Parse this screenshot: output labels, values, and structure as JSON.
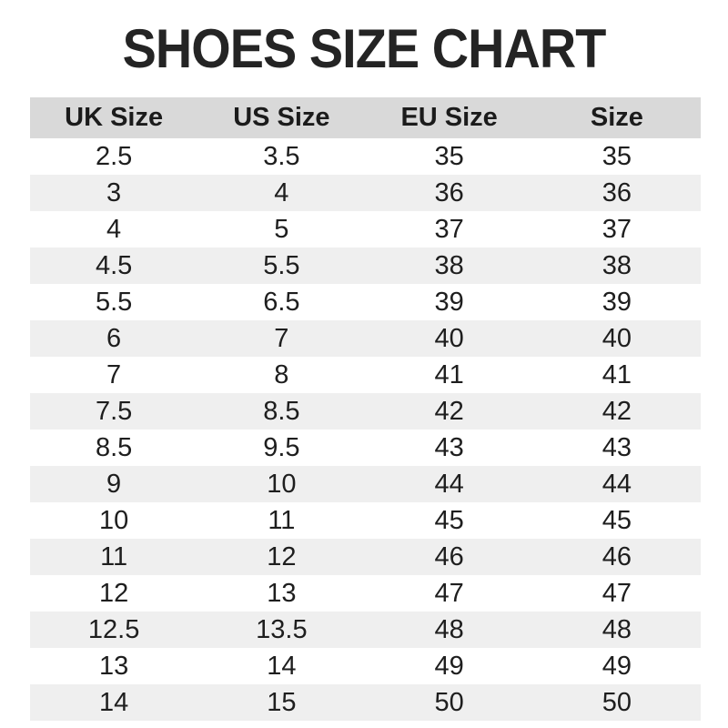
{
  "page": {
    "title": "SHOES SIZE CHART"
  },
  "colors": {
    "header_bg": "#d9d9d9",
    "stripe_bg": "#efefef",
    "text": "#1e1e1e",
    "title_text": "#242424"
  },
  "chart_data": {
    "type": "table",
    "title": "SHOES SIZE CHART",
    "columns": [
      "UK Size",
      "US Size",
      "EU Size",
      "Size"
    ],
    "rows": [
      [
        "2.5",
        "3.5",
        "35",
        "35"
      ],
      [
        "3",
        "4",
        "36",
        "36"
      ],
      [
        "4",
        "5",
        "37",
        "37"
      ],
      [
        "4.5",
        "5.5",
        "38",
        "38"
      ],
      [
        "5.5",
        "6.5",
        "39",
        "39"
      ],
      [
        "6",
        "7",
        "40",
        "40"
      ],
      [
        "7",
        "8",
        "41",
        "41"
      ],
      [
        "7.5",
        "8.5",
        "42",
        "42"
      ],
      [
        "8.5",
        "9.5",
        "43",
        "43"
      ],
      [
        "9",
        "10",
        "44",
        "44"
      ],
      [
        "10",
        "11",
        "45",
        "45"
      ],
      [
        "11",
        "12",
        "46",
        "46"
      ],
      [
        "12",
        "13",
        "47",
        "47"
      ],
      [
        "12.5",
        "13.5",
        "48",
        "48"
      ],
      [
        "13",
        "14",
        "49",
        "49"
      ],
      [
        "14",
        "15",
        "50",
        "50"
      ]
    ],
    "layout": {
      "striped_rows": true,
      "first_data_row_background": "white",
      "column_alignment": "center"
    }
  }
}
